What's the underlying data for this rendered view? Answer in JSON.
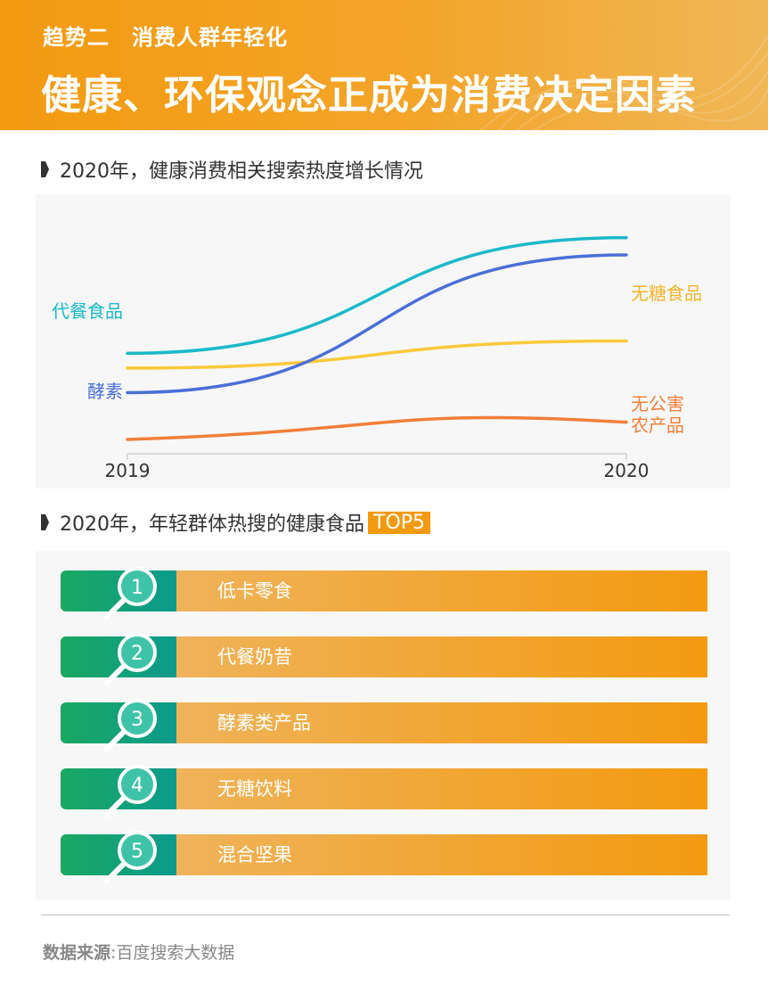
{
  "header": {
    "subtitle": "趋势二　消费人群年轻化",
    "title": "健康、环保观念正成为消费决定因素"
  },
  "section1": {
    "title": "2020年，健康消费相关搜索热度增长情况"
  },
  "section2": {
    "title": "2020年，年轻群体热搜的健康食品",
    "badge": "TOP5"
  },
  "chart_data": {
    "type": "line",
    "x": [
      "2019",
      "2020"
    ],
    "series": [
      {
        "name": "代餐食品",
        "color": "#1ab9c9",
        "values": [
          39,
          86
        ]
      },
      {
        "name": "无糖食品",
        "color": "#f9c93a",
        "values": [
          33,
          44
        ]
      },
      {
        "name": "酵素",
        "color": "#4a6fd8",
        "values": [
          23,
          79
        ]
      },
      {
        "name": "无公害农产品",
        "color": "#f27f3a",
        "values": [
          4,
          11
        ]
      }
    ],
    "ylim": [
      0,
      100
    ],
    "grid": false
  },
  "labels": {
    "daican": "代餐食品",
    "jiaosu": "酵素",
    "wutang": "无糖食品",
    "wugonghai_line1": "无公害",
    "wugonghai_line2": "农产品"
  },
  "ranking": [
    {
      "rank": "1",
      "name": "低卡零食"
    },
    {
      "rank": "2",
      "name": "代餐奶昔"
    },
    {
      "rank": "3",
      "name": "酵素类产品"
    },
    {
      "rank": "4",
      "name": "无糖饮料"
    },
    {
      "rank": "5",
      "name": "混合坚果"
    }
  ],
  "source": {
    "label": "数据来源",
    "separator": ":",
    "value": "百度搜索大数据"
  }
}
